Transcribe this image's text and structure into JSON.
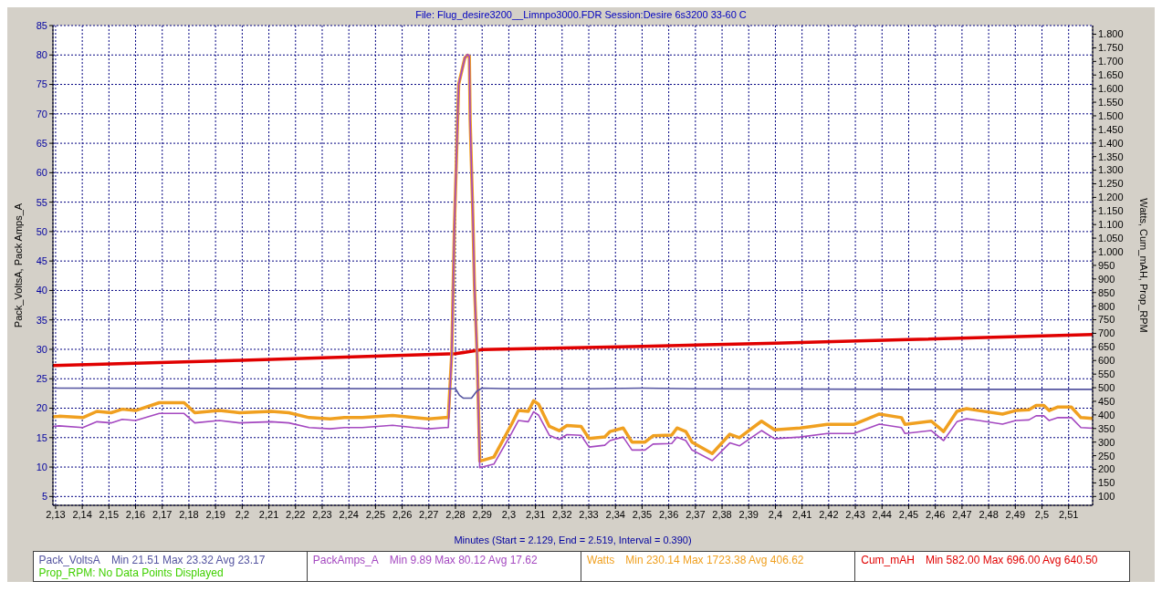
{
  "chart_data": {
    "type": "line",
    "title": "File: Flug_desire3200__Limnpo3000.FDR   Session:Desire 6s3200 33-60 C",
    "xlabel": "Minutes (Start = 2.129, End = 2.519, Interval = 0.390)",
    "ylabel": "Pack_VoltsA, Pack Amps_A",
    "y2label": "Watts, Cum_mAH, Prop_RPM",
    "xlim": [
      2.129,
      2.519
    ],
    "xticks": [
      {
        "value": 2.13,
        "label": "2,13"
      },
      {
        "value": 2.14,
        "label": "2,14"
      },
      {
        "value": 2.15,
        "label": "2,15"
      },
      {
        "value": 2.16,
        "label": "2,16"
      },
      {
        "value": 2.17,
        "label": "2,17"
      },
      {
        "value": 2.18,
        "label": "2,18"
      },
      {
        "value": 2.19,
        "label": "2,19"
      },
      {
        "value": 2.2,
        "label": "2,2"
      },
      {
        "value": 2.21,
        "label": "2,21"
      },
      {
        "value": 2.22,
        "label": "2,22"
      },
      {
        "value": 2.23,
        "label": "2,23"
      },
      {
        "value": 2.24,
        "label": "2,24"
      },
      {
        "value": 2.25,
        "label": "2,25"
      },
      {
        "value": 2.26,
        "label": "2,26"
      },
      {
        "value": 2.27,
        "label": "2,27"
      },
      {
        "value": 2.28,
        "label": "2,28"
      },
      {
        "value": 2.29,
        "label": "2,29"
      },
      {
        "value": 2.3,
        "label": "2,3"
      },
      {
        "value": 2.31,
        "label": "2,31"
      },
      {
        "value": 2.32,
        "label": "2,32"
      },
      {
        "value": 2.33,
        "label": "2,33"
      },
      {
        "value": 2.34,
        "label": "2,34"
      },
      {
        "value": 2.35,
        "label": "2,35"
      },
      {
        "value": 2.36,
        "label": "2,36"
      },
      {
        "value": 2.37,
        "label": "2,37"
      },
      {
        "value": 2.38,
        "label": "2,38"
      },
      {
        "value": 2.39,
        "label": "2,39"
      },
      {
        "value": 2.4,
        "label": "2,4"
      },
      {
        "value": 2.41,
        "label": "2,41"
      },
      {
        "value": 2.42,
        "label": "2,42"
      },
      {
        "value": 2.43,
        "label": "2,43"
      },
      {
        "value": 2.44,
        "label": "2,44"
      },
      {
        "value": 2.45,
        "label": "2,45"
      },
      {
        "value": 2.46,
        "label": "2,46"
      },
      {
        "value": 2.47,
        "label": "2,47"
      },
      {
        "value": 2.48,
        "label": "2,48"
      },
      {
        "value": 2.49,
        "label": "2,49"
      },
      {
        "value": 2.5,
        "label": "2,5"
      },
      {
        "value": 2.51,
        "label": "2,51"
      }
    ],
    "ylim": [
      3.5,
      85
    ],
    "yticks": [
      5,
      10,
      15,
      20,
      25,
      30,
      35,
      40,
      45,
      50,
      55,
      60,
      65,
      70,
      75,
      80,
      85
    ],
    "y2lim": [
      67.5,
      1832
    ],
    "y2ticks": [
      100,
      150,
      200,
      250,
      300,
      350,
      400,
      450,
      500,
      550,
      600,
      650,
      700,
      750,
      800,
      850,
      900,
      950,
      {
        "value": 1000,
        "label": "1.000"
      },
      {
        "value": 1050,
        "label": "1.050"
      },
      {
        "value": 1100,
        "label": "1.100"
      },
      {
        "value": 1150,
        "label": "1.150"
      },
      {
        "value": 1200,
        "label": "1.200"
      },
      {
        "value": 1250,
        "label": "1.250"
      },
      {
        "value": 1300,
        "label": "1.300"
      },
      {
        "value": 1350,
        "label": "1.350"
      },
      {
        "value": 1400,
        "label": "1.400"
      },
      {
        "value": 1450,
        "label": "1.450"
      },
      {
        "value": 1500,
        "label": "1.500"
      },
      {
        "value": 1550,
        "label": "1.550"
      },
      {
        "value": 1600,
        "label": "1.600"
      },
      {
        "value": 1650,
        "label": "1.650"
      },
      {
        "value": 1700,
        "label": "1.700"
      },
      {
        "value": 1750,
        "label": "1.750"
      },
      {
        "value": 1800,
        "label": "1.800"
      }
    ],
    "grid": true,
    "legend": "bottom",
    "series": [
      {
        "name": "Pack_VoltsA",
        "color": "#5454a0",
        "x": [
          2.129,
          2.28,
          2.2815,
          2.283,
          2.286,
          2.288,
          2.29,
          2.3,
          2.33,
          2.35,
          2.37,
          2.45,
          2.519
        ],
        "values": [
          23.4,
          23.3,
          22.2,
          21.7,
          21.7,
          22.9,
          23.4,
          23.3,
          23.3,
          23.4,
          23.3,
          23.2,
          23.2
        ]
      },
      {
        "name": "PackAmps_A",
        "color": "#a448c0",
        "x": [
          2.129,
          2.1313,
          2.1402,
          2.1455,
          2.1508,
          2.155,
          2.16,
          2.1689,
          2.1782,
          2.1822,
          2.1914,
          2.199,
          2.2109,
          2.2175,
          2.2251,
          2.233,
          2.2383,
          2.245,
          2.2564,
          2.2644,
          2.27,
          2.2762,
          2.2773,
          2.2786,
          2.2796,
          2.2812,
          2.2835,
          2.2845,
          2.2852,
          2.2855,
          2.2865,
          2.2871,
          2.2881,
          2.2891,
          2.2944,
          2.3011,
          2.3036,
          2.3073,
          2.3093,
          2.3112,
          2.3152,
          2.3189,
          2.3218,
          2.3271,
          2.3301,
          2.336,
          2.338,
          2.3429,
          2.3462,
          2.3511,
          2.3541,
          2.3611,
          2.3631,
          2.3664,
          2.3687,
          2.3763,
          2.3829,
          2.3865,
          2.3948,
          2.3997,
          2.4093,
          2.4195,
          2.4294,
          2.439,
          2.4473,
          2.4486,
          2.4585,
          2.4631,
          2.4681,
          2.4717,
          2.4763,
          2.4852,
          2.4902,
          2.4951,
          2.4978,
          2.5007,
          2.5027,
          2.506,
          2.511,
          2.5146,
          2.519
        ],
        "values": [
          16.9,
          17.0,
          16.7,
          17.7,
          17.5,
          18.1,
          17.9,
          19.1,
          19.1,
          17.5,
          17.9,
          17.5,
          17.7,
          17.5,
          16.7,
          16.5,
          16.7,
          16.7,
          17.1,
          16.7,
          16.5,
          16.7,
          16.7,
          29.4,
          51,
          75,
          79.5,
          80.1,
          79.8,
          69,
          53,
          41,
          29,
          9.9,
          10.5,
          15.8,
          17.9,
          17.7,
          19.4,
          18.8,
          15.4,
          14.7,
          15.5,
          15.4,
          13.4,
          13.7,
          14.5,
          15.1,
          12.9,
          12.9,
          13.9,
          14.0,
          15.1,
          14.5,
          12.9,
          11.1,
          14.1,
          13.6,
          16.2,
          14.8,
          15.1,
          15.7,
          15.7,
          17.3,
          16.7,
          15.7,
          16.2,
          14.5,
          17.7,
          18.2,
          17.9,
          17.3,
          17.9,
          18.0,
          18.7,
          18.7,
          17.9,
          18.4,
          18.4,
          16.7,
          16.6
        ]
      },
      {
        "name": "Watts",
        "color": "#f0a020",
        "axis": "y2",
        "x": [
          2.129,
          2.1313,
          2.1402,
          2.1455,
          2.1508,
          2.155,
          2.16,
          2.1689,
          2.1782,
          2.1822,
          2.1914,
          2.199,
          2.2109,
          2.2175,
          2.2251,
          2.233,
          2.2383,
          2.245,
          2.2564,
          2.2644,
          2.27,
          2.2762,
          2.2773,
          2.2786,
          2.2796,
          2.2812,
          2.2835,
          2.2845,
          2.2852,
          2.2855,
          2.2865,
          2.2871,
          2.2881,
          2.2891,
          2.2944,
          2.3011,
          2.3036,
          2.3073,
          2.3093,
          2.3112,
          2.3152,
          2.3189,
          2.3218,
          2.3271,
          2.3301,
          2.336,
          2.338,
          2.3429,
          2.3462,
          2.3511,
          2.3541,
          2.3611,
          2.3631,
          2.3664,
          2.3687,
          2.3763,
          2.3829,
          2.3865,
          2.3948,
          2.3997,
          2.4093,
          2.4195,
          2.4294,
          2.439,
          2.4473,
          2.4486,
          2.4585,
          2.4631,
          2.4681,
          2.4717,
          2.4763,
          2.4852,
          2.4902,
          2.4951,
          2.4978,
          2.5007,
          2.5027,
          2.506,
          2.511,
          2.5146,
          2.519
        ],
        "values": [
          393,
          395,
          390,
          413,
          408,
          421,
          416,
          445,
          445,
          408,
          416,
          408,
          413,
          408,
          390,
          385,
          390,
          390,
          398,
          390,
          385,
          390,
          390,
          628,
          1096,
          1616,
          1713,
          1723,
          1719,
          1486,
          1139,
          879,
          620,
          230,
          245,
          367,
          416,
          413,
          452,
          439,
          358,
          342,
          361,
          358,
          313,
          319,
          339,
          352,
          300,
          300,
          323,
          326,
          352,
          339,
          300,
          258,
          329,
          316,
          377,
          345,
          352,
          365,
          365,
          403,
          390,
          365,
          377,
          339,
          413,
          423,
          416,
          403,
          416,
          419,
          435,
          435,
          416,
          429,
          429,
          390,
          387
        ]
      },
      {
        "name": "Cum_mAH",
        "color": "#e00000",
        "axis": "y2",
        "x": [
          2.129,
          2.2,
          2.28,
          2.29,
          2.35,
          2.4,
          2.45,
          2.519
        ],
        "values": [
          582,
          601,
          625,
          640,
          652,
          664,
          677,
          696
        ]
      }
    ],
    "annotations": [
      "Min 21.51   Max 23.32   Avg 23.17",
      "Min 9.89   Max 80.12   Avg 17.62",
      "Min 230.14   Max 1723.38   Avg 406.62",
      "Min 582.00   Max 696.00   Avg 640.50",
      "Prop_RPM: No Data Points Displayed"
    ]
  }
}
